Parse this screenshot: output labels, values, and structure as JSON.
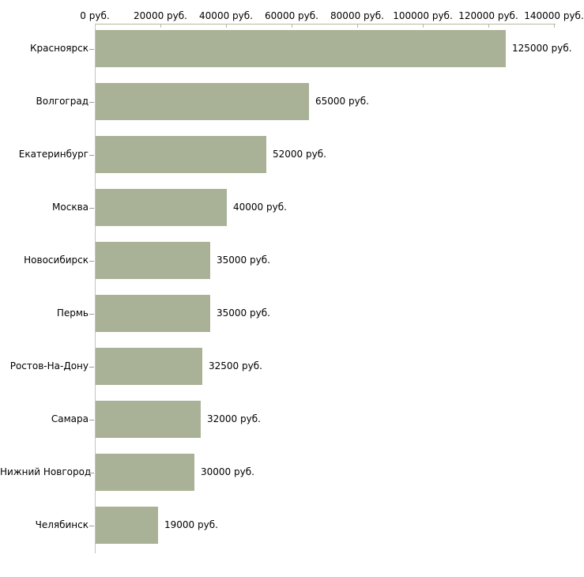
{
  "chart_data": {
    "type": "bar",
    "orientation": "horizontal",
    "categories": [
      "Красноярск",
      "Волгоград",
      "Екатеринбург",
      "Москва",
      "Новосибирск",
      "Пермь",
      "Ростов-На-Дону",
      "Самара",
      "Нижний Новгород",
      "Челябинск"
    ],
    "values": [
      125000,
      65000,
      52000,
      40000,
      35000,
      35000,
      32500,
      32000,
      30000,
      19000
    ],
    "value_labels": [
      "125000 руб.",
      "65000 руб.",
      "52000 руб.",
      "40000 руб.",
      "35000 руб.",
      "35000 руб.",
      "32500 руб.",
      "32000 руб.",
      "30000 руб.",
      "19000 руб."
    ],
    "x_axis": {
      "position": "top",
      "ticks": [
        0,
        20000,
        40000,
        60000,
        80000,
        100000,
        120000,
        140000
      ],
      "tick_labels": [
        "0 руб.",
        "20000 руб.",
        "40000 руб.",
        "60000 руб.",
        "80000 руб.",
        "100000 руб.",
        "120000 руб.",
        "140000 руб."
      ],
      "xlim": [
        0,
        140500
      ]
    },
    "grid": false,
    "legend": false,
    "colors": {
      "bar": "#a9b297",
      "value_axis_line": "#b6b99c",
      "category_axis_line": "#c3c3c3",
      "category_tick": "#9a9d94",
      "text": "#000000",
      "background": "#ffffff"
    }
  }
}
